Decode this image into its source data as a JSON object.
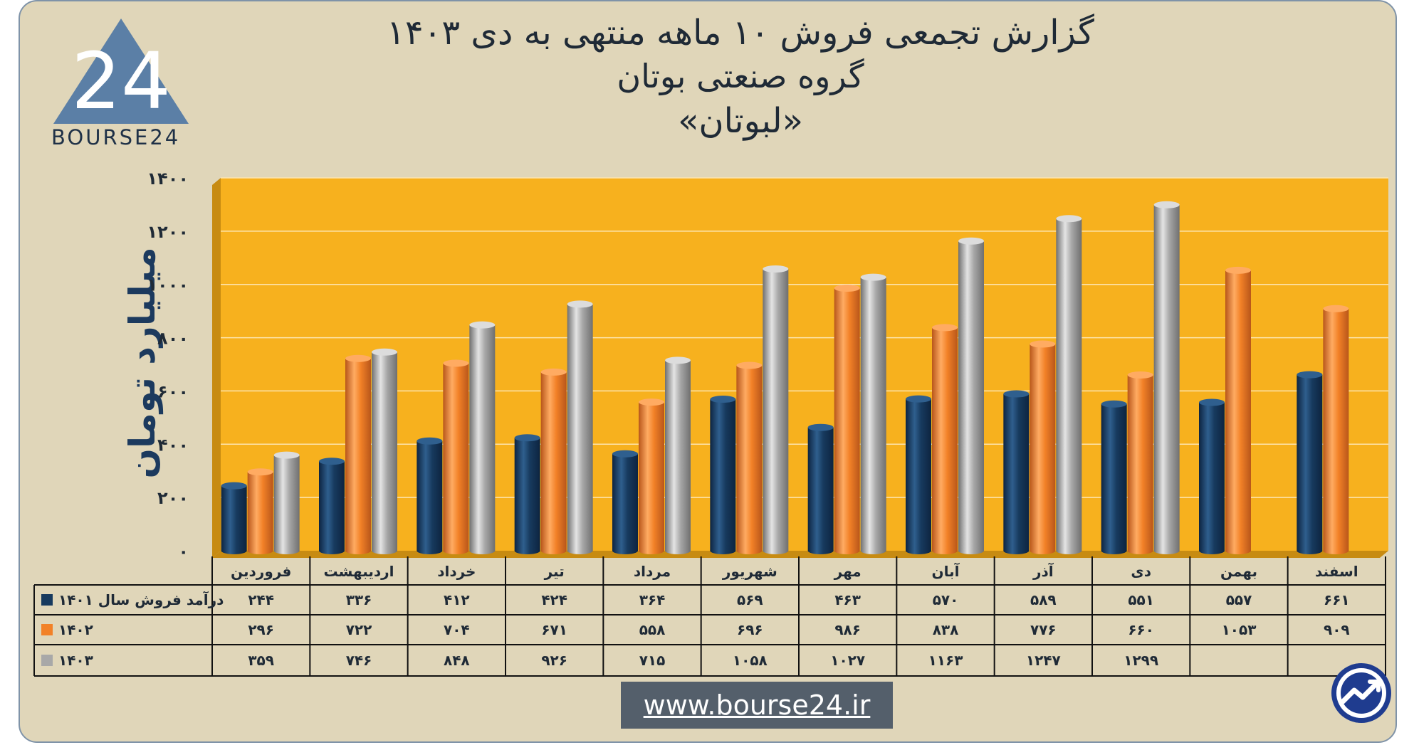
{
  "header": {
    "title_line1": "گزارش تجمعی فروش ۱۰ ماهه منتهی به دی ۱۴۰۳",
    "title_line2": "گروه صنعتی بوتان",
    "title_line3": "«لبوتان»"
  },
  "logo": {
    "number": "24",
    "text": "BOURSE24"
  },
  "footer": {
    "website": "www.bourse24.ir"
  },
  "colors": {
    "plot_bg": "#f7b11e",
    "frame_bg": "#e0d6b9",
    "series_1401": "#173a5e",
    "series_1402": "#f28127",
    "series_1403": "#a8a8a8",
    "axis_text": "#1c3a5e"
  },
  "chart_data": {
    "type": "bar",
    "title": "گزارش تجمعی فروش ۱۰ ماهه منتهی به دی ۱۴۰۳",
    "ylabel": "میلیارد تومان",
    "ylim": [
      0,
      1400
    ],
    "yticks": [
      0,
      200,
      400,
      600,
      800,
      1000,
      1200,
      1400
    ],
    "ytick_labels": [
      "۰",
      "۲۰۰",
      "۴۰۰",
      "۶۰۰",
      "۸۰۰",
      "۱۰۰۰",
      "۱۲۰۰",
      "۱۴۰۰"
    ],
    "grid": true,
    "legend_position": "table-left",
    "categories": [
      "فروردین",
      "اردیبهشت",
      "خرداد",
      "تیر",
      "مرداد",
      "شهریور",
      "مهر",
      "آبان",
      "آذر",
      "دی",
      "بهمن",
      "اسفند"
    ],
    "series": [
      {
        "name": "درآمد فروش سال ۱۴۰۱",
        "color": "#173a5e",
        "values": [
          244,
          336,
          412,
          424,
          364,
          569,
          463,
          570,
          589,
          551,
          557,
          661
        ],
        "labels": [
          "۲۴۴",
          "۳۳۶",
          "۴۱۲",
          "۴۲۴",
          "۳۶۴",
          "۵۶۹",
          "۴۶۳",
          "۵۷۰",
          "۵۸۹",
          "۵۵۱",
          "۵۵۷",
          "۶۶۱"
        ]
      },
      {
        "name": "۱۴۰۲",
        "color": "#f28127",
        "values": [
          296,
          722,
          704,
          671,
          558,
          696,
          986,
          838,
          776,
          660,
          1053,
          909
        ],
        "labels": [
          "۲۹۶",
          "۷۲۲",
          "۷۰۴",
          "۶۷۱",
          "۵۵۸",
          "۶۹۶",
          "۹۸۶",
          "۸۳۸",
          "۷۷۶",
          "۶۶۰",
          "۱۰۵۳",
          "۹۰۹"
        ]
      },
      {
        "name": "۱۴۰۳",
        "color": "#a8a8a8",
        "values": [
          359,
          746,
          848,
          926,
          715,
          1058,
          1027,
          1163,
          1247,
          1299,
          null,
          null
        ],
        "labels": [
          "۳۵۹",
          "۷۴۶",
          "۸۴۸",
          "۹۲۶",
          "۷۱۵",
          "۱۰۵۸",
          "۱۰۲۷",
          "۱۱۶۳",
          "۱۲۴۷",
          "۱۲۹۹",
          "",
          ""
        ]
      }
    ]
  }
}
